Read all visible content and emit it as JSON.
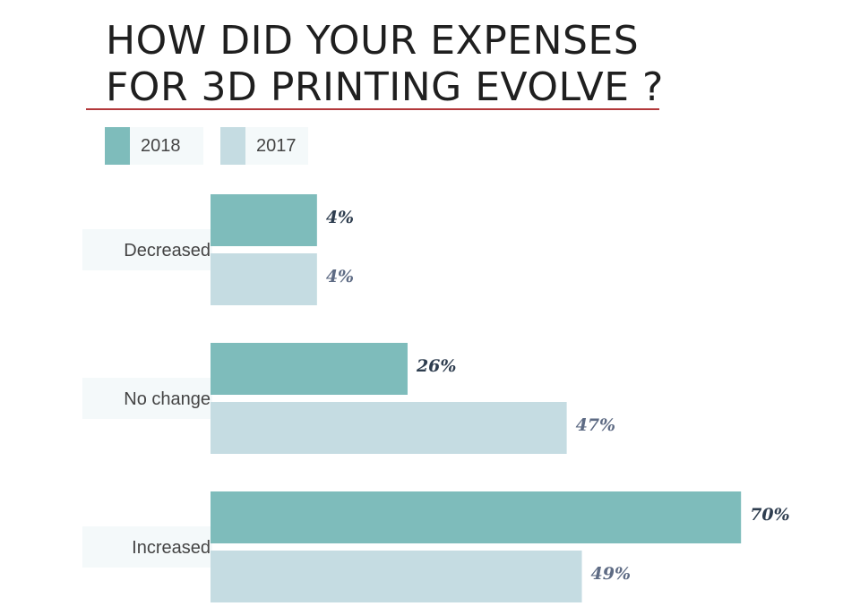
{
  "title_lines": [
    "HOW DID YOUR EXPENSES",
    "FOR 3D PRINTING EVOLVE ?"
  ],
  "colors": {
    "series_2018": "#7ebcbb",
    "series_2017": "#c5dce2",
    "label_2018": "#2e3d4f",
    "label_2017": "#5e6b84",
    "title_rule": "#b2383a"
  },
  "chart_data": {
    "type": "bar",
    "orientation": "horizontal",
    "title": "HOW DID YOUR EXPENSES FOR 3D PRINTING EVOLVE ?",
    "categories": [
      "Decreased",
      "No change",
      "Increased"
    ],
    "series": [
      {
        "name": "2018",
        "values": [
          4,
          26,
          70
        ],
        "labels": [
          "4%",
          "26%",
          "70%"
        ]
      },
      {
        "name": "2017",
        "values": [
          4,
          47,
          49
        ],
        "labels": [
          "4%",
          "47%",
          "49%"
        ]
      }
    ],
    "legend_position": "top-left",
    "grid": false
  }
}
